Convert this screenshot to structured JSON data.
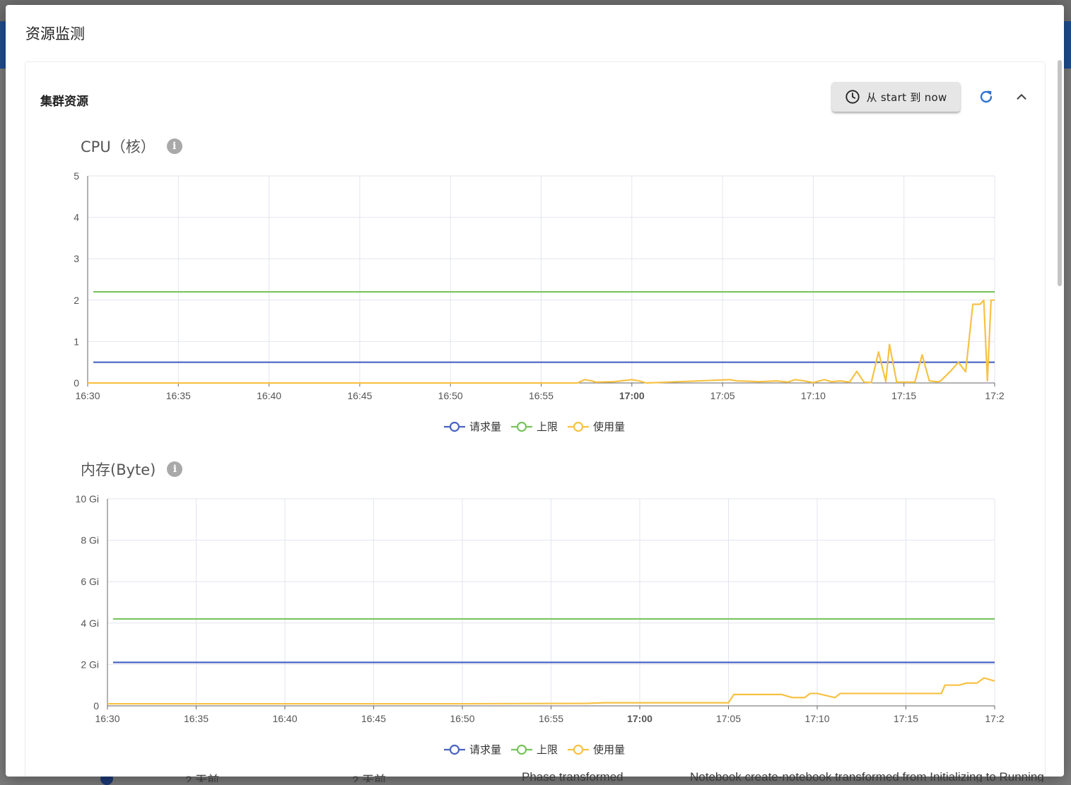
{
  "dialog": {
    "title": "资源监测"
  },
  "card": {
    "title": "集群资源",
    "time_range_label": "从 start 到 now"
  },
  "colors": {
    "requests": "#4a63c4",
    "limits": "#79c35e",
    "usage": "#f7c244",
    "grid": "#e3e6ef"
  },
  "icons": [
    "clock-icon",
    "refresh-icon",
    "chevron-up-icon",
    "info-icon"
  ],
  "chart_data": [
    {
      "type": "line",
      "title": "CPU（核）",
      "ylim": [
        0,
        5
      ],
      "y_ticks": [
        "0",
        "1",
        "2",
        "3",
        "4",
        "5"
      ],
      "x_ticks": [
        "16:30",
        "16:35",
        "16:40",
        "16:45",
        "16:50",
        "16:55",
        "17:00",
        "17:05",
        "17:10",
        "17:15",
        "17:2"
      ],
      "x_unit": "minutes after 16:30",
      "series": [
        {
          "name": "请求量",
          "x": [
            0,
            50
          ],
          "y": [
            0.5,
            0.5
          ]
        },
        {
          "name": "上限",
          "x": [
            0,
            50
          ],
          "y": [
            2.2,
            2.2
          ]
        },
        {
          "name": "使用量",
          "x": [
            0,
            27,
            27.4,
            27.8,
            28,
            29,
            30,
            30.4,
            30.8,
            32,
            35.4,
            35.8,
            36.5,
            37,
            38,
            38.6,
            39,
            39.5,
            40,
            40.6,
            41,
            41.5,
            42,
            42.4,
            42.8,
            43.2,
            43.6,
            44,
            44.2,
            44.6,
            45.6,
            46,
            46.4,
            46.8,
            47,
            47.6,
            48,
            48.4,
            48.8,
            49.2,
            49.4,
            49.6,
            49.8,
            50
          ],
          "y": [
            0,
            0,
            0.08,
            0.05,
            0.02,
            0.03,
            0.08,
            0.05,
            0,
            0.02,
            0.08,
            0.05,
            0.04,
            0.03,
            0.05,
            0.02,
            0.08,
            0.05,
            0.01,
            0.08,
            0.03,
            0.05,
            0.02,
            0.28,
            0.02,
            0.01,
            0.75,
            0.03,
            0.93,
            0.02,
            0.02,
            0.68,
            0.05,
            0.03,
            0.04,
            0.3,
            0.5,
            0.27,
            1.9,
            1.9,
            2.0,
            0.05,
            2.0,
            2.0
          ]
        }
      ]
    },
    {
      "type": "line",
      "title": "内存(Byte)",
      "ylim": [
        0,
        10
      ],
      "y_ticks": [
        "0",
        "2 Gi",
        "4 Gi",
        "6 Gi",
        "8 Gi",
        "10 Gi"
      ],
      "x_ticks": [
        "16:30",
        "16:35",
        "16:40",
        "16:45",
        "16:50",
        "16:55",
        "17:00",
        "17:05",
        "17:10",
        "17:15",
        "17:2"
      ],
      "x_unit": "minutes after 16:30",
      "series": [
        {
          "name": "请求量",
          "x": [
            0,
            50
          ],
          "y": [
            2.1,
            2.1
          ]
        },
        {
          "name": "上限",
          "x": [
            0,
            50
          ],
          "y": [
            4.2,
            4.2
          ]
        },
        {
          "name": "使用量",
          "x": [
            0,
            4,
            10,
            20,
            27,
            28,
            35,
            35.3,
            36,
            37,
            38,
            38.6,
            39.3,
            39.6,
            40,
            41,
            41.3,
            43,
            46,
            47,
            47.2,
            48,
            48.4,
            49,
            49.4,
            50
          ],
          "y": [
            0.1,
            0.1,
            0.1,
            0.1,
            0.12,
            0.15,
            0.15,
            0.55,
            0.55,
            0.55,
            0.55,
            0.4,
            0.4,
            0.6,
            0.6,
            0.4,
            0.6,
            0.6,
            0.6,
            0.6,
            1.0,
            1.0,
            1.1,
            1.1,
            1.35,
            1.2
          ]
        }
      ]
    }
  ]
}
